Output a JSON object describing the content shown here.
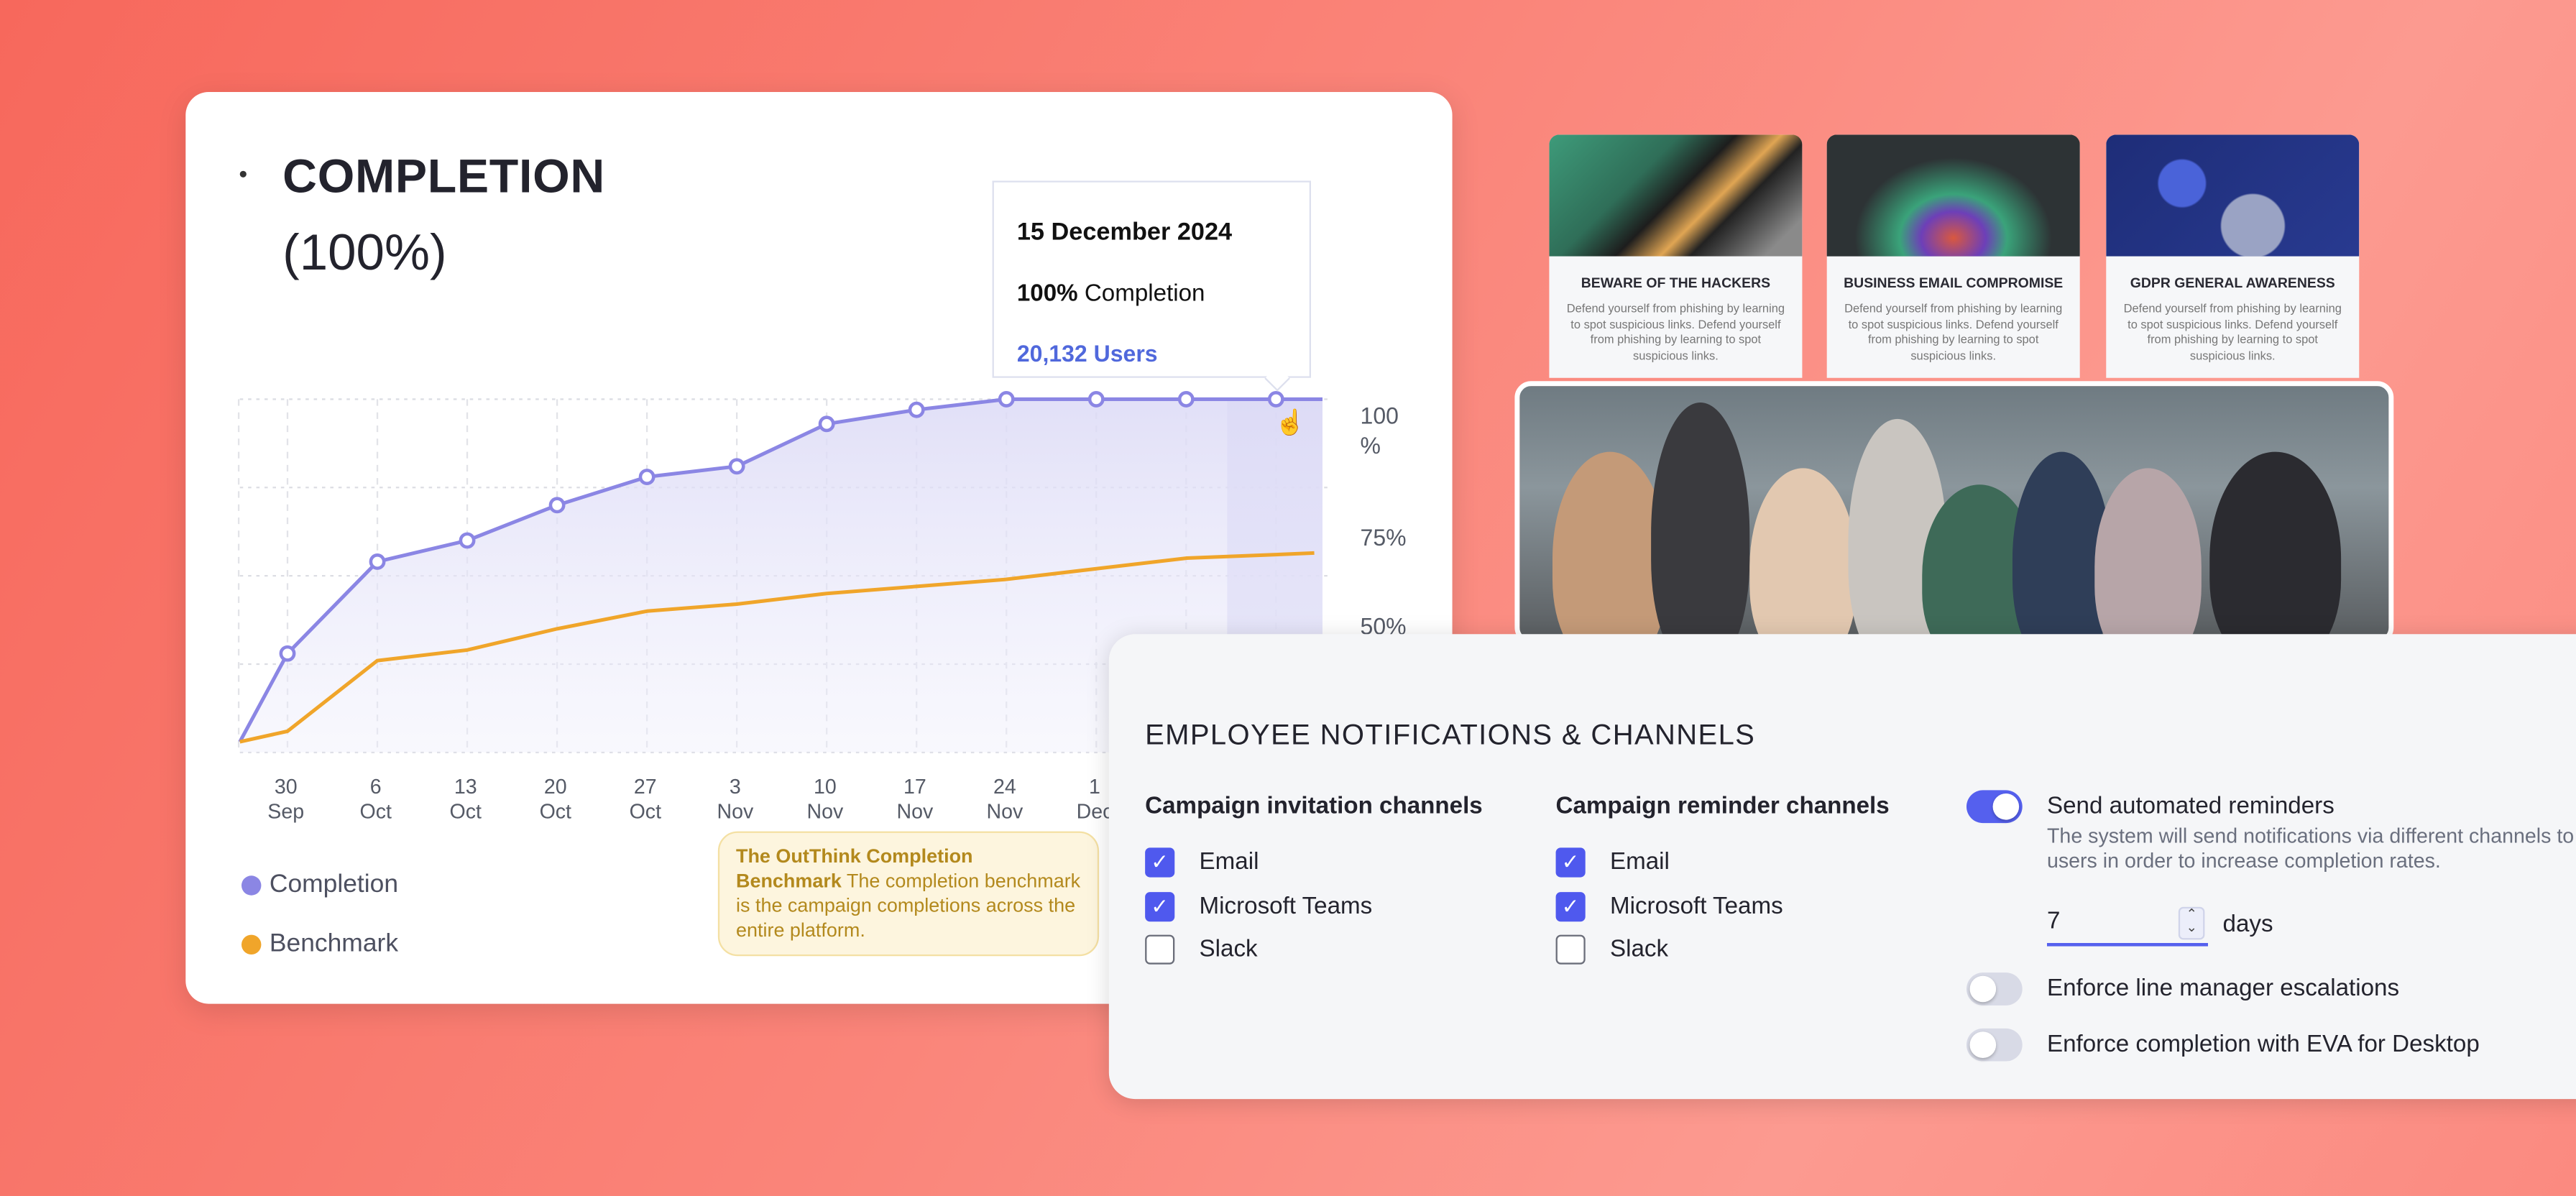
{
  "completion_card": {
    "title": "COMPLETION",
    "subtitle": "(100%)",
    "tooltip": {
      "date": "15 December 2024",
      "percent": "100%",
      "percent_label": "Completion",
      "users": "20,132 Users"
    },
    "legend": [
      {
        "label": "Completion",
        "color": "#8b86e4"
      },
      {
        "label": "Benchmark",
        "color": "#f0a52a"
      }
    ],
    "benchmark_note": {
      "title": "The OutThink Completion Benchmark",
      "text": "The completion benchmark is the campaign completions across the entire platform."
    }
  },
  "chart_data": {
    "type": "area",
    "x_ticks": [
      {
        "d": "30",
        "m": "Sep"
      },
      {
        "d": "6",
        "m": "Oct"
      },
      {
        "d": "13",
        "m": "Oct"
      },
      {
        "d": "20",
        "m": "Oct"
      },
      {
        "d": "27",
        "m": "Oct"
      },
      {
        "d": "3",
        "m": "Nov"
      },
      {
        "d": "10",
        "m": "Nov"
      },
      {
        "d": "17",
        "m": "Nov"
      },
      {
        "d": "24",
        "m": "Nov"
      },
      {
        "d": "1",
        "m": "Dec"
      }
    ],
    "y_ticks": [
      "100 %",
      "75%",
      "50%"
    ],
    "ylim": [
      0,
      100
    ],
    "grid": true,
    "highlighted": "2024-12-15",
    "series": [
      {
        "name": "Completion",
        "color": "#8b86e4",
        "markers": true,
        "points": [
          [
            "2024-09-23",
            3
          ],
          [
            "2024-09-30",
            28
          ],
          [
            "2024-10-06",
            54
          ],
          [
            "2024-10-13",
            60
          ],
          [
            "2024-10-20",
            70
          ],
          [
            "2024-10-27",
            78
          ],
          [
            "2024-11-03",
            81
          ],
          [
            "2024-11-10",
            93
          ],
          [
            "2024-11-17",
            97
          ],
          [
            "2024-11-24",
            100
          ],
          [
            "2024-12-01",
            100
          ],
          [
            "2024-12-08",
            100
          ],
          [
            "2024-12-15",
            100
          ]
        ]
      },
      {
        "name": "Benchmark",
        "color": "#f0a52a",
        "markers": false,
        "points": [
          [
            "2024-09-23",
            3
          ],
          [
            "2024-09-30",
            6
          ],
          [
            "2024-10-06",
            26
          ],
          [
            "2024-10-13",
            29
          ],
          [
            "2024-10-20",
            35
          ],
          [
            "2024-10-27",
            40
          ],
          [
            "2024-11-03",
            42
          ],
          [
            "2024-11-10",
            45
          ],
          [
            "2024-11-17",
            47
          ],
          [
            "2024-11-24",
            49
          ],
          [
            "2024-12-01",
            52
          ],
          [
            "2024-12-08",
            55
          ],
          [
            "2024-12-15",
            56
          ]
        ]
      }
    ]
  },
  "courses": [
    {
      "title": "BEWARE OF THE HACKERS",
      "desc": "Defend yourself from phishing by learning to spot suspicious links. Defend yourself from phishing by learning to spot suspicious links."
    },
    {
      "title": "BUSINESS EMAIL COMPROMISE",
      "desc": "Defend yourself from phishing by learning to spot suspicious links. Defend yourself from phishing by learning to spot suspicious links."
    },
    {
      "title": "GDPR GENERAL AWARENESS",
      "desc": "Defend yourself from phishing by learning to spot suspicious links. Defend yourself from phishing by learning to spot suspicious links."
    }
  ],
  "notifications": {
    "title": "EMPLOYEE NOTIFICATIONS & CHANNELS",
    "invitation": {
      "heading": "Campaign invitation channels",
      "options": [
        {
          "label": "Email",
          "checked": true
        },
        {
          "label": "Microsoft Teams",
          "checked": true
        },
        {
          "label": "Slack",
          "checked": false
        }
      ]
    },
    "reminder": {
      "heading": "Campaign reminder channels",
      "options": [
        {
          "label": "Email",
          "checked": true
        },
        {
          "label": "Microsoft Teams",
          "checked": true
        },
        {
          "label": "Slack",
          "checked": false
        }
      ]
    },
    "auto_reminders": {
      "label": "Send automated reminders",
      "on": true,
      "desc": "The system will send notifications via different channels to users in order to increase completion rates.",
      "days_value": "7",
      "days_unit": "days"
    },
    "escalations": {
      "label": "Enforce line manager escalations",
      "on": false
    },
    "eva": {
      "label": "Enforce completion with EVA for Desktop",
      "on": false
    }
  },
  "colors": {
    "accent": "#4f59ee",
    "completion": "#8b86e4",
    "benchmark": "#f0a52a"
  }
}
